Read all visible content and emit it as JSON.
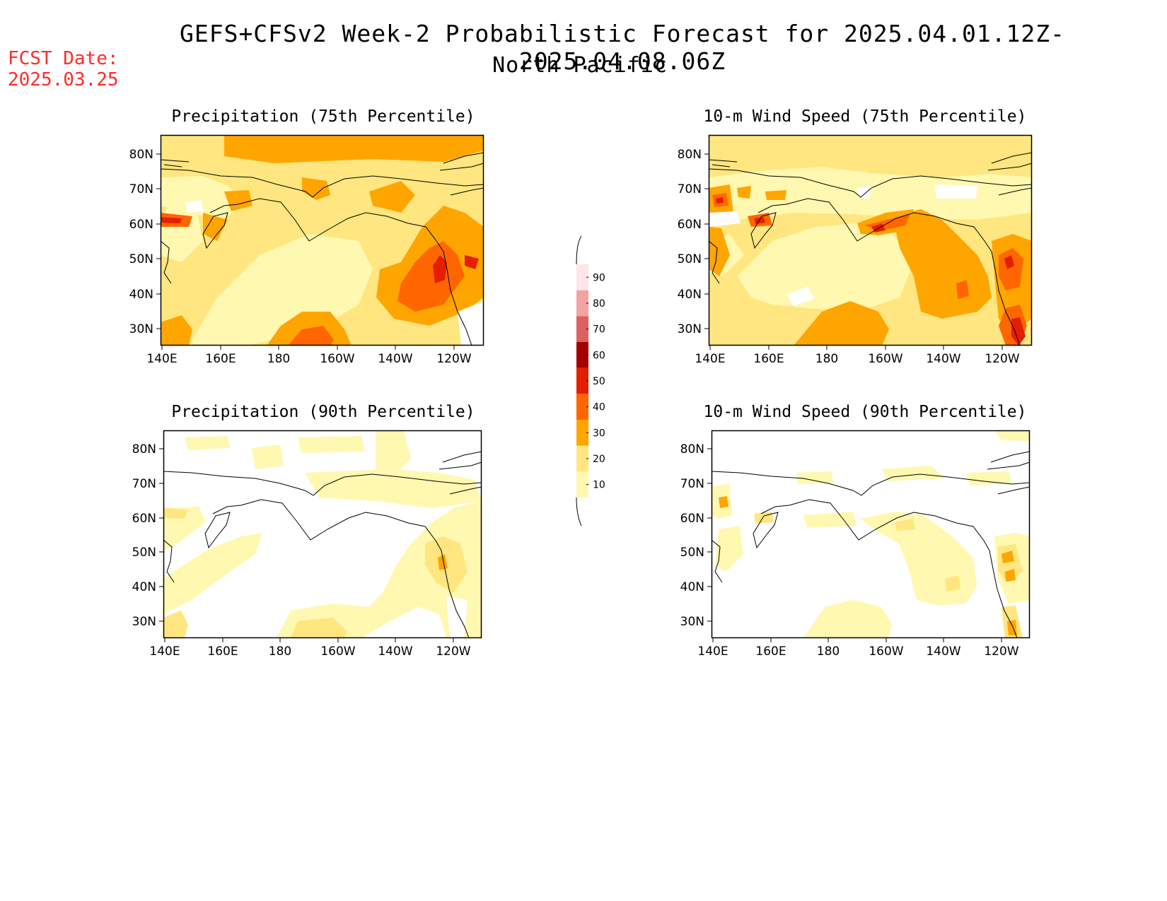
{
  "header": {
    "title": "GEFS+CFSv2 Week-2 Probabilistic Forecast for 2025.04.01.12Z-2025.04.08.06Z",
    "region": "North Pacific",
    "fcst_label": "FCST Date:",
    "fcst_date": "2025.03.25"
  },
  "axes": {
    "lon_ticks": [
      "140E",
      "160E",
      "180",
      "160W",
      "140W",
      "120W"
    ],
    "lat_ticks": [
      "80N",
      "70N",
      "60N",
      "50N",
      "40N",
      "30N"
    ]
  },
  "panels": [
    {
      "id": "precip75",
      "title": "Precipitation (75th Percentile)",
      "variable": "precipitation",
      "percentile": 75
    },
    {
      "id": "wind75",
      "title": "10-m Wind Speed (75th Percentile)",
      "variable": "10-m wind speed",
      "percentile": 75
    },
    {
      "id": "precip90",
      "title": "Precipitation (90th Percentile)",
      "variable": "precipitation",
      "percentile": 90
    },
    {
      "id": "wind90",
      "title": "10-m Wind Speed (90th Percentile)",
      "variable": "10-m wind speed",
      "percentile": 90
    }
  ],
  "legend": {
    "levels": [
      10,
      20,
      30,
      40,
      50,
      60,
      70,
      80,
      90
    ],
    "labels": [
      "90",
      "80",
      "70",
      "60",
      "50",
      "40",
      "30",
      "20",
      "10"
    ],
    "colors": [
      "#fff8b0",
      "#ffe680",
      "#ffa500",
      "#ff6600",
      "#e61e00",
      "#a50000",
      "#dd6060",
      "#f4a3a3",
      "#ffe4e8"
    ]
  }
}
